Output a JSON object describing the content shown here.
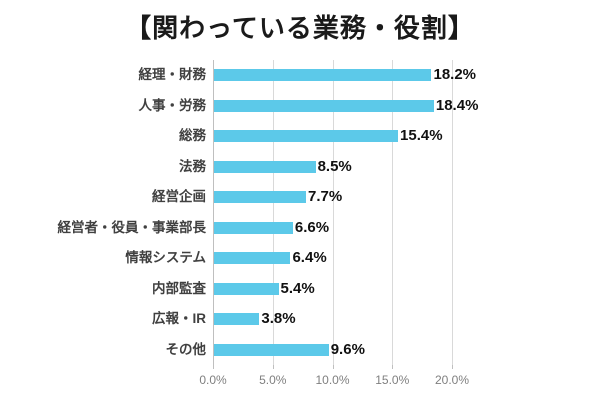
{
  "title": "【関わっている業務・役割】",
  "colors": {
    "bar": "#5cc9e9",
    "gridline": "#d9d9d9",
    "axis_line": "#bfbfbf",
    "category_label": "#404040",
    "value_label": "#111111",
    "tick_label": "#7f7f7f",
    "background": "#ffffff",
    "title_text": "#1a1a1a"
  },
  "chart_data": {
    "type": "bar",
    "orientation": "horizontal",
    "title": "【関わっている業務・役割】",
    "categories": [
      "経理・財務",
      "人事・労務",
      "総務",
      "法務",
      "経営企画",
      "経営者・役員・事業部長",
      "情報システム",
      "内部監査",
      "広報・IR",
      "その他"
    ],
    "values": [
      18.2,
      18.4,
      15.4,
      8.5,
      7.7,
      6.6,
      6.4,
      5.4,
      3.8,
      9.6
    ],
    "value_labels": [
      "18.2%",
      "18.4%",
      "15.4%",
      "8.5%",
      "7.7%",
      "6.6%",
      "6.4%",
      "5.4%",
      "3.8%",
      "9.6%"
    ],
    "x_tick_labels": [
      "0.0%",
      "5.0%",
      "10.0%",
      "15.0%",
      "20.0%"
    ],
    "x_tick_values": [
      0,
      5,
      10,
      15,
      20
    ],
    "xlim": [
      0,
      20
    ],
    "xlabel": "",
    "ylabel": "",
    "grid": true,
    "legend": false
  }
}
